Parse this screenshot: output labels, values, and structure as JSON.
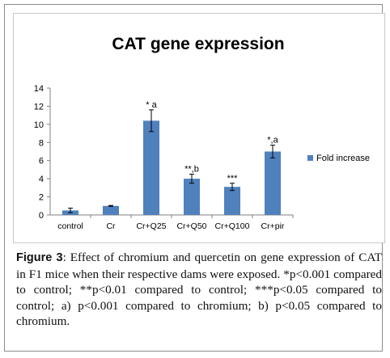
{
  "chart_data": {
    "type": "bar",
    "title": "CAT gene expression",
    "categories": [
      "control",
      "Cr",
      "Cr+Q25",
      "Cr+Q50",
      "Cr+Q100",
      "Cr+pir"
    ],
    "series": [
      {
        "name": "Fold increase",
        "values": [
          0.5,
          1.0,
          10.4,
          4.0,
          3.1,
          7.0
        ],
        "errors": [
          0.25,
          0.05,
          1.2,
          0.5,
          0.4,
          0.7
        ],
        "annotations": [
          "",
          "",
          "* a",
          "**,b",
          "***",
          "*,a"
        ]
      }
    ],
    "yticks": [
      "0",
      "2",
      "4",
      "6",
      "8",
      "10",
      "12",
      "14"
    ],
    "ylim": [
      0,
      14
    ],
    "xlabel": "",
    "ylabel": "",
    "legend_position": "right",
    "grid": false,
    "bar_color": "#4f81bd"
  },
  "caption": {
    "label": "Figure 3",
    "text": ": Effect of chromium and quercetin on gene expression of CAT in F1 mice when their respective dams were exposed. *p<0.001 compared to control; **p<0.01 compared to control; ***p<0.05 compared to control; a) p<0.001 compared to chromium; b) p<0.05 compared to chromium."
  }
}
